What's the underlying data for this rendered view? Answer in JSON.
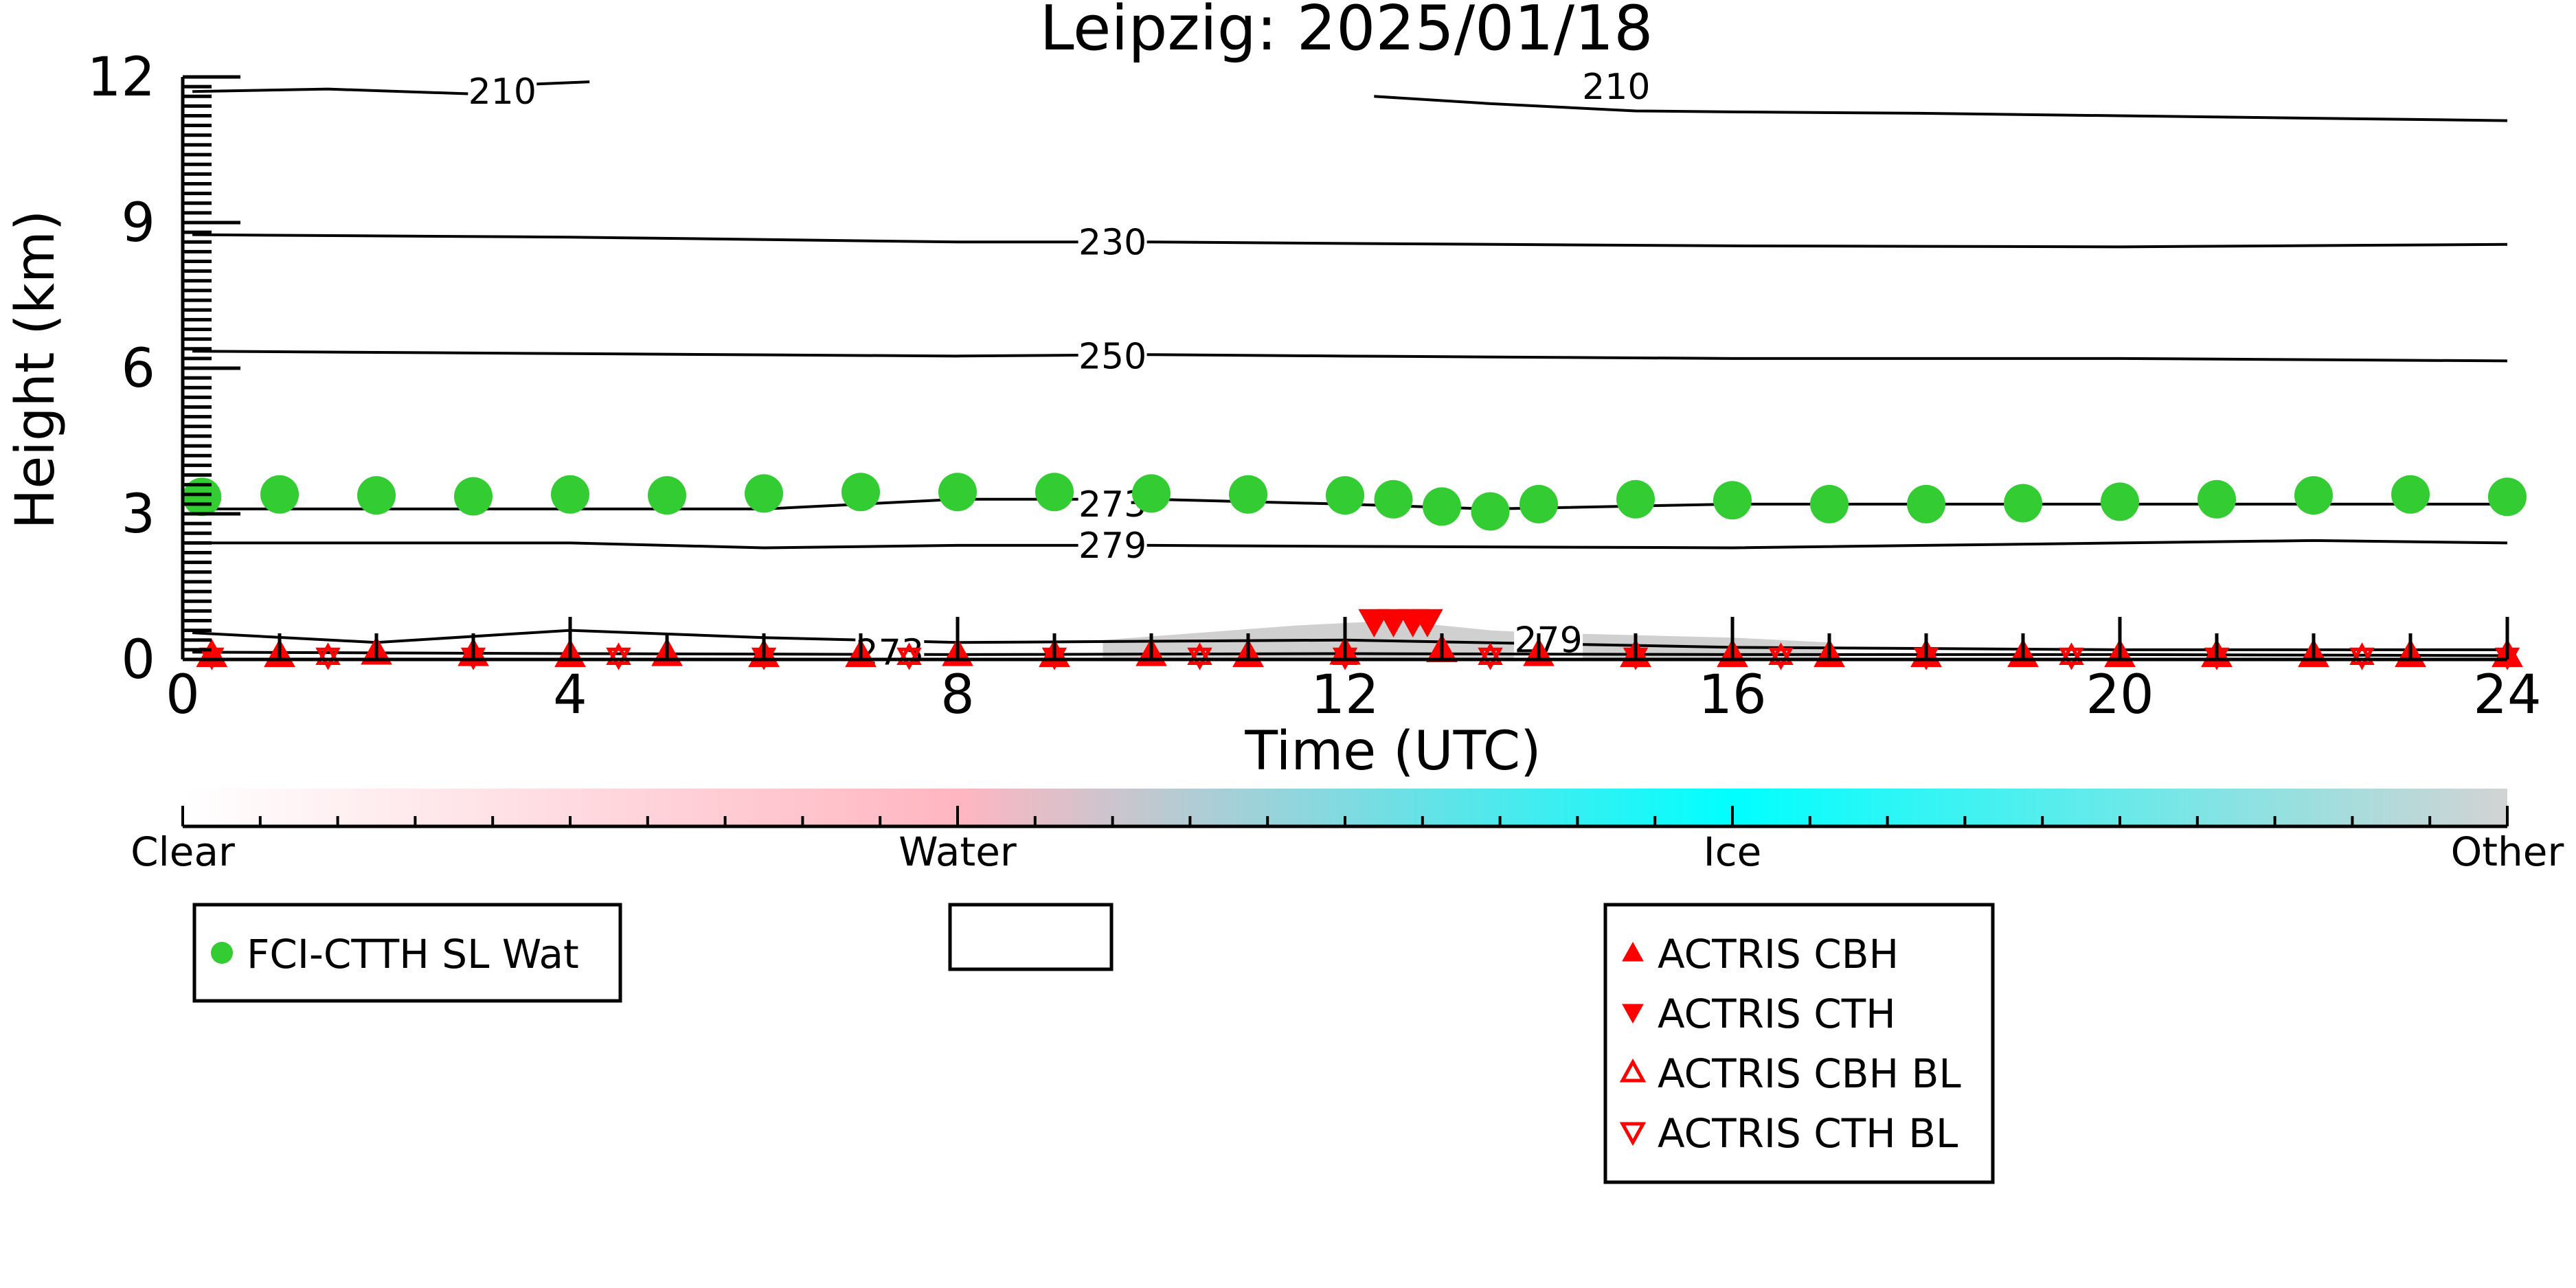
{
  "chart_data": {
    "type": "line",
    "title": "Leipzig: 2025/01/18",
    "xlabel": "Time (UTC)",
    "ylabel": "Height (km)",
    "xlim": [
      0,
      24
    ],
    "ylim": [
      0,
      12
    ],
    "x_ticks": [
      0,
      4,
      8,
      12,
      16,
      20,
      24
    ],
    "y_ticks": [
      0,
      3,
      6,
      9,
      12
    ],
    "x_tick_labels": [
      "0",
      "4",
      "8",
      "12",
      "16",
      "20",
      "24"
    ],
    "y_tick_labels": [
      "0",
      "3",
      "6",
      "9",
      "12"
    ],
    "grid": false,
    "contours": [
      {
        "label": "210",
        "label_at": [
          3.3,
          11.7
        ],
        "x": [
          0.1,
          1.5,
          3.0,
          3.6,
          4.2
        ],
        "y": [
          11.7,
          11.75,
          11.65,
          11.85,
          11.9
        ]
      },
      {
        "label": "210",
        "label_at": [
          14.8,
          11.8
        ],
        "x": [
          12.3,
          13.5,
          15.0,
          16.0,
          18.0,
          20.0,
          22.0,
          24.0
        ],
        "y": [
          11.6,
          11.45,
          11.3,
          11.28,
          11.25,
          11.2,
          11.15,
          11.1
        ]
      },
      {
        "label": "230",
        "label_at": [
          9.6,
          8.6
        ],
        "x": [
          0.1,
          4.0,
          8.0,
          10.0,
          12.0,
          16.0,
          20.0,
          24.0
        ],
        "y": [
          8.75,
          8.7,
          8.6,
          8.6,
          8.57,
          8.52,
          8.5,
          8.55
        ]
      },
      {
        "label": "250",
        "label_at": [
          9.6,
          6.25
        ],
        "x": [
          0.1,
          4.0,
          8.0,
          10.0,
          12.0,
          16.0,
          20.0,
          24.0
        ],
        "y": [
          6.35,
          6.3,
          6.25,
          6.28,
          6.25,
          6.2,
          6.2,
          6.15
        ]
      },
      {
        "label": "273",
        "label_at": [
          9.6,
          3.2
        ],
        "x": [
          0.1,
          4.0,
          6.0,
          8.0,
          10.0,
          12.0,
          13.5,
          16.0,
          20.0,
          24.0
        ],
        "y": [
          3.1,
          3.1,
          3.1,
          3.3,
          3.3,
          3.2,
          3.1,
          3.2,
          3.2,
          3.2
        ]
      },
      {
        "label": "279",
        "label_at": [
          9.6,
          2.35
        ],
        "x": [
          0.1,
          4.0,
          6.0,
          8.0,
          10.0,
          12.0,
          16.0,
          20.0,
          22.0,
          24.0
        ],
        "y": [
          2.4,
          2.4,
          2.3,
          2.35,
          2.35,
          2.33,
          2.3,
          2.4,
          2.45,
          2.4
        ]
      },
      {
        "label": "279",
        "label_at": [
          14.1,
          0.4
        ],
        "x": [
          0.1,
          2.0,
          4.0,
          6.0,
          8.0,
          12.0,
          16.0,
          20.0,
          24.0
        ],
        "y": [
          0.55,
          0.35,
          0.6,
          0.45,
          0.35,
          0.4,
          0.25,
          0.2,
          0.2
        ]
      },
      {
        "label": "273",
        "label_at": [
          7.3,
          0.15
        ],
        "x": [
          0.1,
          4.0,
          8.0,
          12.0,
          16.0,
          20.0,
          24.0
        ],
        "y": [
          0.15,
          0.12,
          0.1,
          0.12,
          0.1,
          0.1,
          0.08
        ]
      }
    ],
    "series": [
      {
        "name": "FCI-CTTH SL Wat",
        "marker": "circle",
        "color": "#33cc33",
        "x": [
          0.2,
          1,
          2,
          3,
          4,
          5,
          6,
          7,
          8,
          9,
          10,
          11,
          12,
          12.5,
          13,
          13.5,
          14,
          15,
          16,
          17,
          18,
          19,
          20,
          21,
          22,
          23,
          24
        ],
        "y": [
          3.35,
          3.4,
          3.38,
          3.36,
          3.4,
          3.38,
          3.42,
          3.45,
          3.45,
          3.45,
          3.42,
          3.4,
          3.38,
          3.3,
          3.15,
          3.05,
          3.2,
          3.3,
          3.28,
          3.2,
          3.2,
          3.22,
          3.25,
          3.3,
          3.38,
          3.4,
          3.35
        ]
      },
      {
        "name": "ACTRIS CBH",
        "marker": "triangle-up",
        "color": "#ff0000",
        "x": [
          0.3,
          1,
          2,
          3,
          4,
          5,
          6,
          7,
          8,
          9,
          10,
          11,
          12,
          13,
          14,
          15,
          16,
          17,
          18,
          19,
          20,
          21,
          22,
          23,
          24
        ],
        "y": [
          0.1,
          0.1,
          0.15,
          0.12,
          0.1,
          0.12,
          0.1,
          0.1,
          0.12,
          0.1,
          0.12,
          0.1,
          0.15,
          0.2,
          0.12,
          0.1,
          0.1,
          0.1,
          0.1,
          0.1,
          0.1,
          0.1,
          0.1,
          0.1,
          0.1
        ]
      },
      {
        "name": "ACTRIS CTH",
        "marker": "triangle-down",
        "color": "#ff0000",
        "x": [
          12.3,
          12.5,
          12.7,
          12.85
        ],
        "y": [
          0.78,
          0.78,
          0.78,
          0.78
        ]
      },
      {
        "name": "ACTRIS CBH BL",
        "marker": "triangle-up-open",
        "color": "#ff0000",
        "x": [
          0.3,
          1.5,
          3,
          4.5,
          6,
          7.5,
          9,
          10.5,
          12,
          13.5,
          15,
          16.5,
          18,
          19.5,
          21,
          22.5,
          24
        ],
        "y": [
          0.08,
          0.08,
          0.08,
          0.08,
          0.08,
          0.08,
          0.08,
          0.08,
          0.08,
          0.08,
          0.08,
          0.08,
          0.08,
          0.08,
          0.08,
          0.08,
          0.08
        ]
      },
      {
        "name": "ACTRIS CTH BL",
        "marker": "triangle-down-open",
        "color": "#ff0000",
        "x": [
          0.3,
          1.5,
          3,
          4.5,
          6,
          7.5,
          9,
          10.5,
          12,
          13.5,
          15,
          16.5,
          18,
          19.5,
          21,
          22.5,
          24
        ],
        "y": [
          0.05,
          0.05,
          0.05,
          0.05,
          0.05,
          0.05,
          0.05,
          0.05,
          0.05,
          0.05,
          0.05,
          0.05,
          0.05,
          0.05,
          0.05,
          0.05,
          0.05
        ]
      }
    ],
    "cloud_shading": {
      "class": "Other",
      "color": "#c8c8c8",
      "x": [
        9.5,
        10.5,
        11.5,
        12.0,
        12.5,
        13.0,
        13.5,
        14.0,
        15.0,
        16.0,
        17.0
      ],
      "top": [
        0.4,
        0.55,
        0.7,
        0.75,
        0.8,
        0.7,
        0.6,
        0.55,
        0.5,
        0.45,
        0.35
      ]
    },
    "colorbar": {
      "labels": [
        "Clear",
        "Water",
        "Ice",
        "Other"
      ],
      "colors": [
        "#ffffff",
        "#ffb6c1",
        "#00ffff",
        "#d3d3d3"
      ]
    },
    "legends": [
      {
        "entries": [
          "FCI-CTTH SL Wat"
        ]
      },
      {
        "entries": []
      },
      {
        "entries": [
          "ACTRIS CBH",
          "ACTRIS CTH",
          "ACTRIS CBH BL",
          "ACTRIS CTH BL"
        ]
      }
    ]
  }
}
